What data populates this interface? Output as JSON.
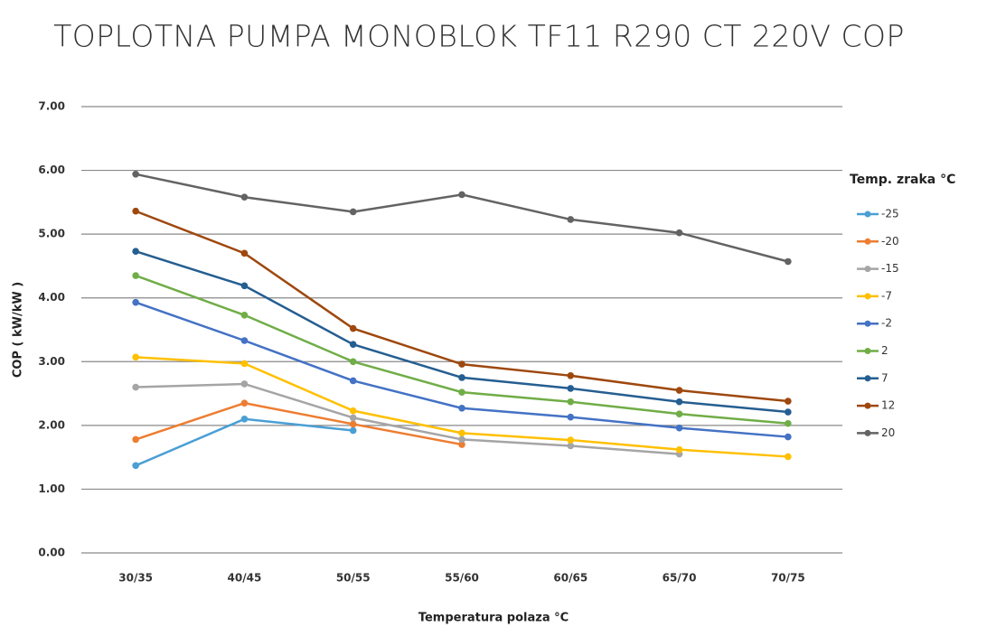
{
  "chart_data": {
    "type": "line",
    "title": "TOPLOTNA PUMPA MONOBLOK TF11 R290 CT 220V COP",
    "x_label": "Temperatura polaza °C",
    "y_label": "COP ( kW/kW )",
    "legend_title": "Temp. zraka °C",
    "legend_position": "right",
    "grid": true,
    "categories": [
      "30/35",
      "40/45",
      "50/55",
      "55/60",
      "60/65",
      "65/70",
      "70/75"
    ],
    "ylim": [
      0,
      7
    ],
    "yticks": [
      {
        "value": 0,
        "label": "0.00"
      },
      {
        "value": 1,
        "label": "1.00"
      },
      {
        "value": 2,
        "label": "2.00"
      },
      {
        "value": 3,
        "label": "3.00"
      },
      {
        "value": 4,
        "label": "4.00"
      },
      {
        "value": 5,
        "label": "5.00"
      },
      {
        "value": 6,
        "label": "6.00"
      },
      {
        "value": 7,
        "label": "7.00"
      }
    ],
    "series": [
      {
        "name": "-25",
        "color": "#4a9fd4",
        "values": [
          1.37,
          2.1,
          1.92,
          null,
          null,
          null,
          null
        ]
      },
      {
        "name": "-20",
        "color": "#ed7d31",
        "values": [
          1.78,
          2.35,
          2.02,
          1.7,
          null,
          null,
          null
        ]
      },
      {
        "name": "-15",
        "color": "#a5a5a5",
        "values": [
          2.6,
          2.65,
          2.12,
          1.78,
          1.68,
          1.55,
          null
        ]
      },
      {
        "name": "-7",
        "color": "#ffc000",
        "values": [
          3.07,
          2.97,
          2.23,
          1.88,
          1.77,
          1.62,
          1.51
        ]
      },
      {
        "name": "-2",
        "color": "#4472c4",
        "values": [
          3.93,
          3.33,
          2.7,
          2.27,
          2.13,
          1.96,
          1.82
        ]
      },
      {
        "name": "2",
        "color": "#70ad47",
        "values": [
          4.35,
          3.73,
          3.0,
          2.52,
          2.37,
          2.18,
          2.03
        ]
      },
      {
        "name": "7",
        "color": "#255e91",
        "values": [
          4.73,
          4.19,
          3.27,
          2.75,
          2.58,
          2.37,
          2.21
        ]
      },
      {
        "name": "12",
        "color": "#9e480e",
        "values": [
          5.36,
          4.7,
          3.52,
          2.96,
          2.78,
          2.55,
          2.38
        ]
      },
      {
        "name": "20",
        "color": "#636363",
        "values": [
          5.94,
          5.58,
          5.35,
          5.62,
          5.23,
          5.02,
          4.57
        ]
      }
    ]
  }
}
